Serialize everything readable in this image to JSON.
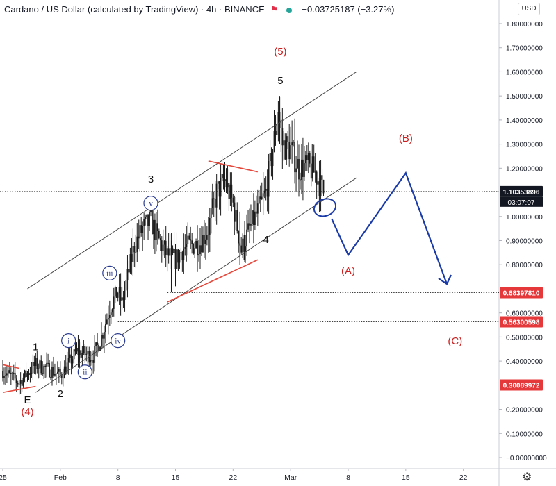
{
  "header": {
    "title": "Cardano / US Dollar (calculated by TradingView) · 4h · BINANCE",
    "change": "−0.03725187 (−3.27%)",
    "currency": "USD"
  },
  "colors": {
    "candle": "#1b1b1b",
    "channel": "#454545",
    "red_label": "#cc1e1e",
    "red_line": "#e5473b",
    "projection": "#1a3aa8",
    "circle_label": "#2a3b8f",
    "price_tag_red": "#e5383b",
    "price_tag_dark": "#131722"
  },
  "chart_data": {
    "type": "candlestick",
    "symbol": "Cardano / US Dollar",
    "timeframe": "4h",
    "exchange": "BINANCE",
    "x_tick_labels": [
      "25",
      "Feb",
      "8",
      "15",
      "22",
      "Mar",
      "8",
      "15",
      "22"
    ],
    "y_tick_labels": [
      "1.80000000",
      "1.70000000",
      "1.60000000",
      "1.50000000",
      "1.40000000",
      "1.30000000",
      "1.20000000",
      "1.00000000",
      "0.90000000",
      "0.80000000",
      "0.60000000",
      "0.50000000",
      "0.40000000",
      "0.20000000",
      "0.10000000",
      "−0.00000000"
    ],
    "ylim": [
      -0.03,
      1.84
    ],
    "xlim": [
      "2021-01-25",
      "2021-03-26"
    ],
    "price_path": [
      {
        "date": "2021-01-25",
        "price": 0.36
      },
      {
        "date": "2021-01-27",
        "price": 0.31
      },
      {
        "date": "2021-01-28",
        "price": 0.35
      },
      {
        "date": "2021-01-29",
        "price": 0.385
      },
      {
        "date": "2021-01-31",
        "price": 0.36
      },
      {
        "date": "2021-02-01",
        "price": 0.34
      },
      {
        "date": "2021-02-02",
        "price": 0.39
      },
      {
        "date": "2021-02-03",
        "price": 0.44
      },
      {
        "date": "2021-02-04",
        "price": 0.43
      },
      {
        "date": "2021-02-05",
        "price": 0.42
      },
      {
        "date": "2021-02-06",
        "price": 0.5
      },
      {
        "date": "2021-02-07",
        "price": 0.62
      },
      {
        "date": "2021-02-08",
        "price": 0.69
      },
      {
        "date": "2021-02-08T12:00",
        "price": 0.64
      },
      {
        "date": "2021-02-09",
        "price": 0.72
      },
      {
        "date": "2021-02-10",
        "price": 0.88
      },
      {
        "date": "2021-02-11",
        "price": 0.95
      },
      {
        "date": "2021-02-12",
        "price": 0.98
      },
      {
        "date": "2021-02-13",
        "price": 0.9
      },
      {
        "date": "2021-02-14",
        "price": 0.84
      },
      {
        "date": "2021-02-15",
        "price": 0.82
      },
      {
        "date": "2021-02-16",
        "price": 0.87
      },
      {
        "date": "2021-02-18",
        "price": 0.89
      },
      {
        "date": "2021-02-19",
        "price": 0.95
      },
      {
        "date": "2021-02-20",
        "price": 1.1
      },
      {
        "date": "2021-02-21",
        "price": 1.15
      },
      {
        "date": "2021-02-22",
        "price": 1.05
      },
      {
        "date": "2021-02-23",
        "price": 0.86
      },
      {
        "date": "2021-02-24",
        "price": 0.95
      },
      {
        "date": "2021-02-25",
        "price": 1.02
      },
      {
        "date": "2021-02-26",
        "price": 1.1
      },
      {
        "date": "2021-02-27",
        "price": 1.32
      },
      {
        "date": "2021-02-27T12:00",
        "price": 1.45
      },
      {
        "date": "2021-02-28",
        "price": 1.3
      },
      {
        "date": "2021-03-01",
        "price": 1.28
      },
      {
        "date": "2021-03-02",
        "price": 1.2
      },
      {
        "date": "2021-03-03",
        "price": 1.21
      },
      {
        "date": "2021-03-04",
        "price": 1.18
      },
      {
        "date": "2021-03-05",
        "price": 1.1
      }
    ],
    "last_price": 1.10353896,
    "countdown": "03:07:07",
    "horizontal_levels": [
      {
        "value": 1.10353896,
        "label": "1.10353896",
        "style": "dotted"
      },
      {
        "value": 0.6839781,
        "label": "0.68397810",
        "style": "dotted"
      },
      {
        "value": 0.56300598,
        "label": "0.56300598",
        "style": "dotted"
      },
      {
        "value": 0.30089972,
        "label": "0.30089972",
        "style": "dotted"
      }
    ],
    "channel_lines": [
      {
        "from": {
          "date": "2021-01-28",
          "price": 0.7
        },
        "to": {
          "date": "2021-03-09",
          "price": 1.6
        }
      },
      {
        "from": {
          "date": "2021-01-29",
          "price": 0.27
        },
        "to": {
          "date": "2021-03-09",
          "price": 1.16
        }
      }
    ],
    "red_trendlines": [
      {
        "from": {
          "date": "2021-01-25",
          "price": 0.385
        },
        "to": {
          "date": "2021-01-27",
          "price": 0.37
        }
      },
      {
        "from": {
          "date": "2021-01-25",
          "price": 0.27
        },
        "to": {
          "date": "2021-01-29",
          "price": 0.295
        }
      },
      {
        "from": {
          "date": "2021-02-19",
          "price": 1.23
        },
        "to": {
          "date": "2021-02-25",
          "price": 1.185
        }
      },
      {
        "from": {
          "date": "2021-02-14",
          "price": 0.645
        },
        "to": {
          "date": "2021-02-25",
          "price": 0.82
        }
      }
    ],
    "projection_path": [
      {
        "date": "2021-03-06",
        "price": 0.99
      },
      {
        "date": "2021-03-08",
        "price": 0.84
      },
      {
        "date": "2021-03-15",
        "price": 1.18
      },
      {
        "date": "2021-03-20",
        "price": 0.72
      }
    ],
    "highlight_ellipse": {
      "date": "2021-03-05",
      "price": 1.04
    },
    "wave_labels": [
      {
        "text": "(5)",
        "date": "2021-02-27T18:00",
        "price": 1.67,
        "color": "red"
      },
      {
        "text": "5",
        "date": "2021-02-27T18:00",
        "price": 1.55,
        "color": "black"
      },
      {
        "text": "3",
        "date": "2021-02-12",
        "price": 1.14,
        "color": "black"
      },
      {
        "text": "4",
        "date": "2021-02-26",
        "price": 0.89,
        "color": "black"
      },
      {
        "text": "1",
        "date": "2021-01-29",
        "price": 0.445,
        "color": "black"
      },
      {
        "text": "2",
        "date": "2021-02-01",
        "price": 0.25,
        "color": "black"
      },
      {
        "text": "E",
        "date": "2021-01-28",
        "price": 0.225,
        "color": "black"
      },
      {
        "text": "(4)",
        "date": "2021-01-28",
        "price": 0.175,
        "color": "red"
      },
      {
        "text": "(A)",
        "date": "2021-03-08",
        "price": 0.76,
        "color": "red"
      },
      {
        "text": "(B)",
        "date": "2021-03-15",
        "price": 1.31,
        "color": "red"
      },
      {
        "text": "(C)",
        "date": "2021-03-21",
        "price": 0.47,
        "color": "red"
      }
    ],
    "circled_labels": [
      {
        "text": "v",
        "date": "2021-02-12",
        "price": 1.055
      },
      {
        "text": "iii",
        "date": "2021-02-07",
        "price": 0.765
      },
      {
        "text": "i",
        "date": "2021-02-02",
        "price": 0.485
      },
      {
        "text": "ii",
        "date": "2021-02-04",
        "price": 0.355
      },
      {
        "text": "iv",
        "date": "2021-02-08",
        "price": 0.485
      }
    ]
  }
}
